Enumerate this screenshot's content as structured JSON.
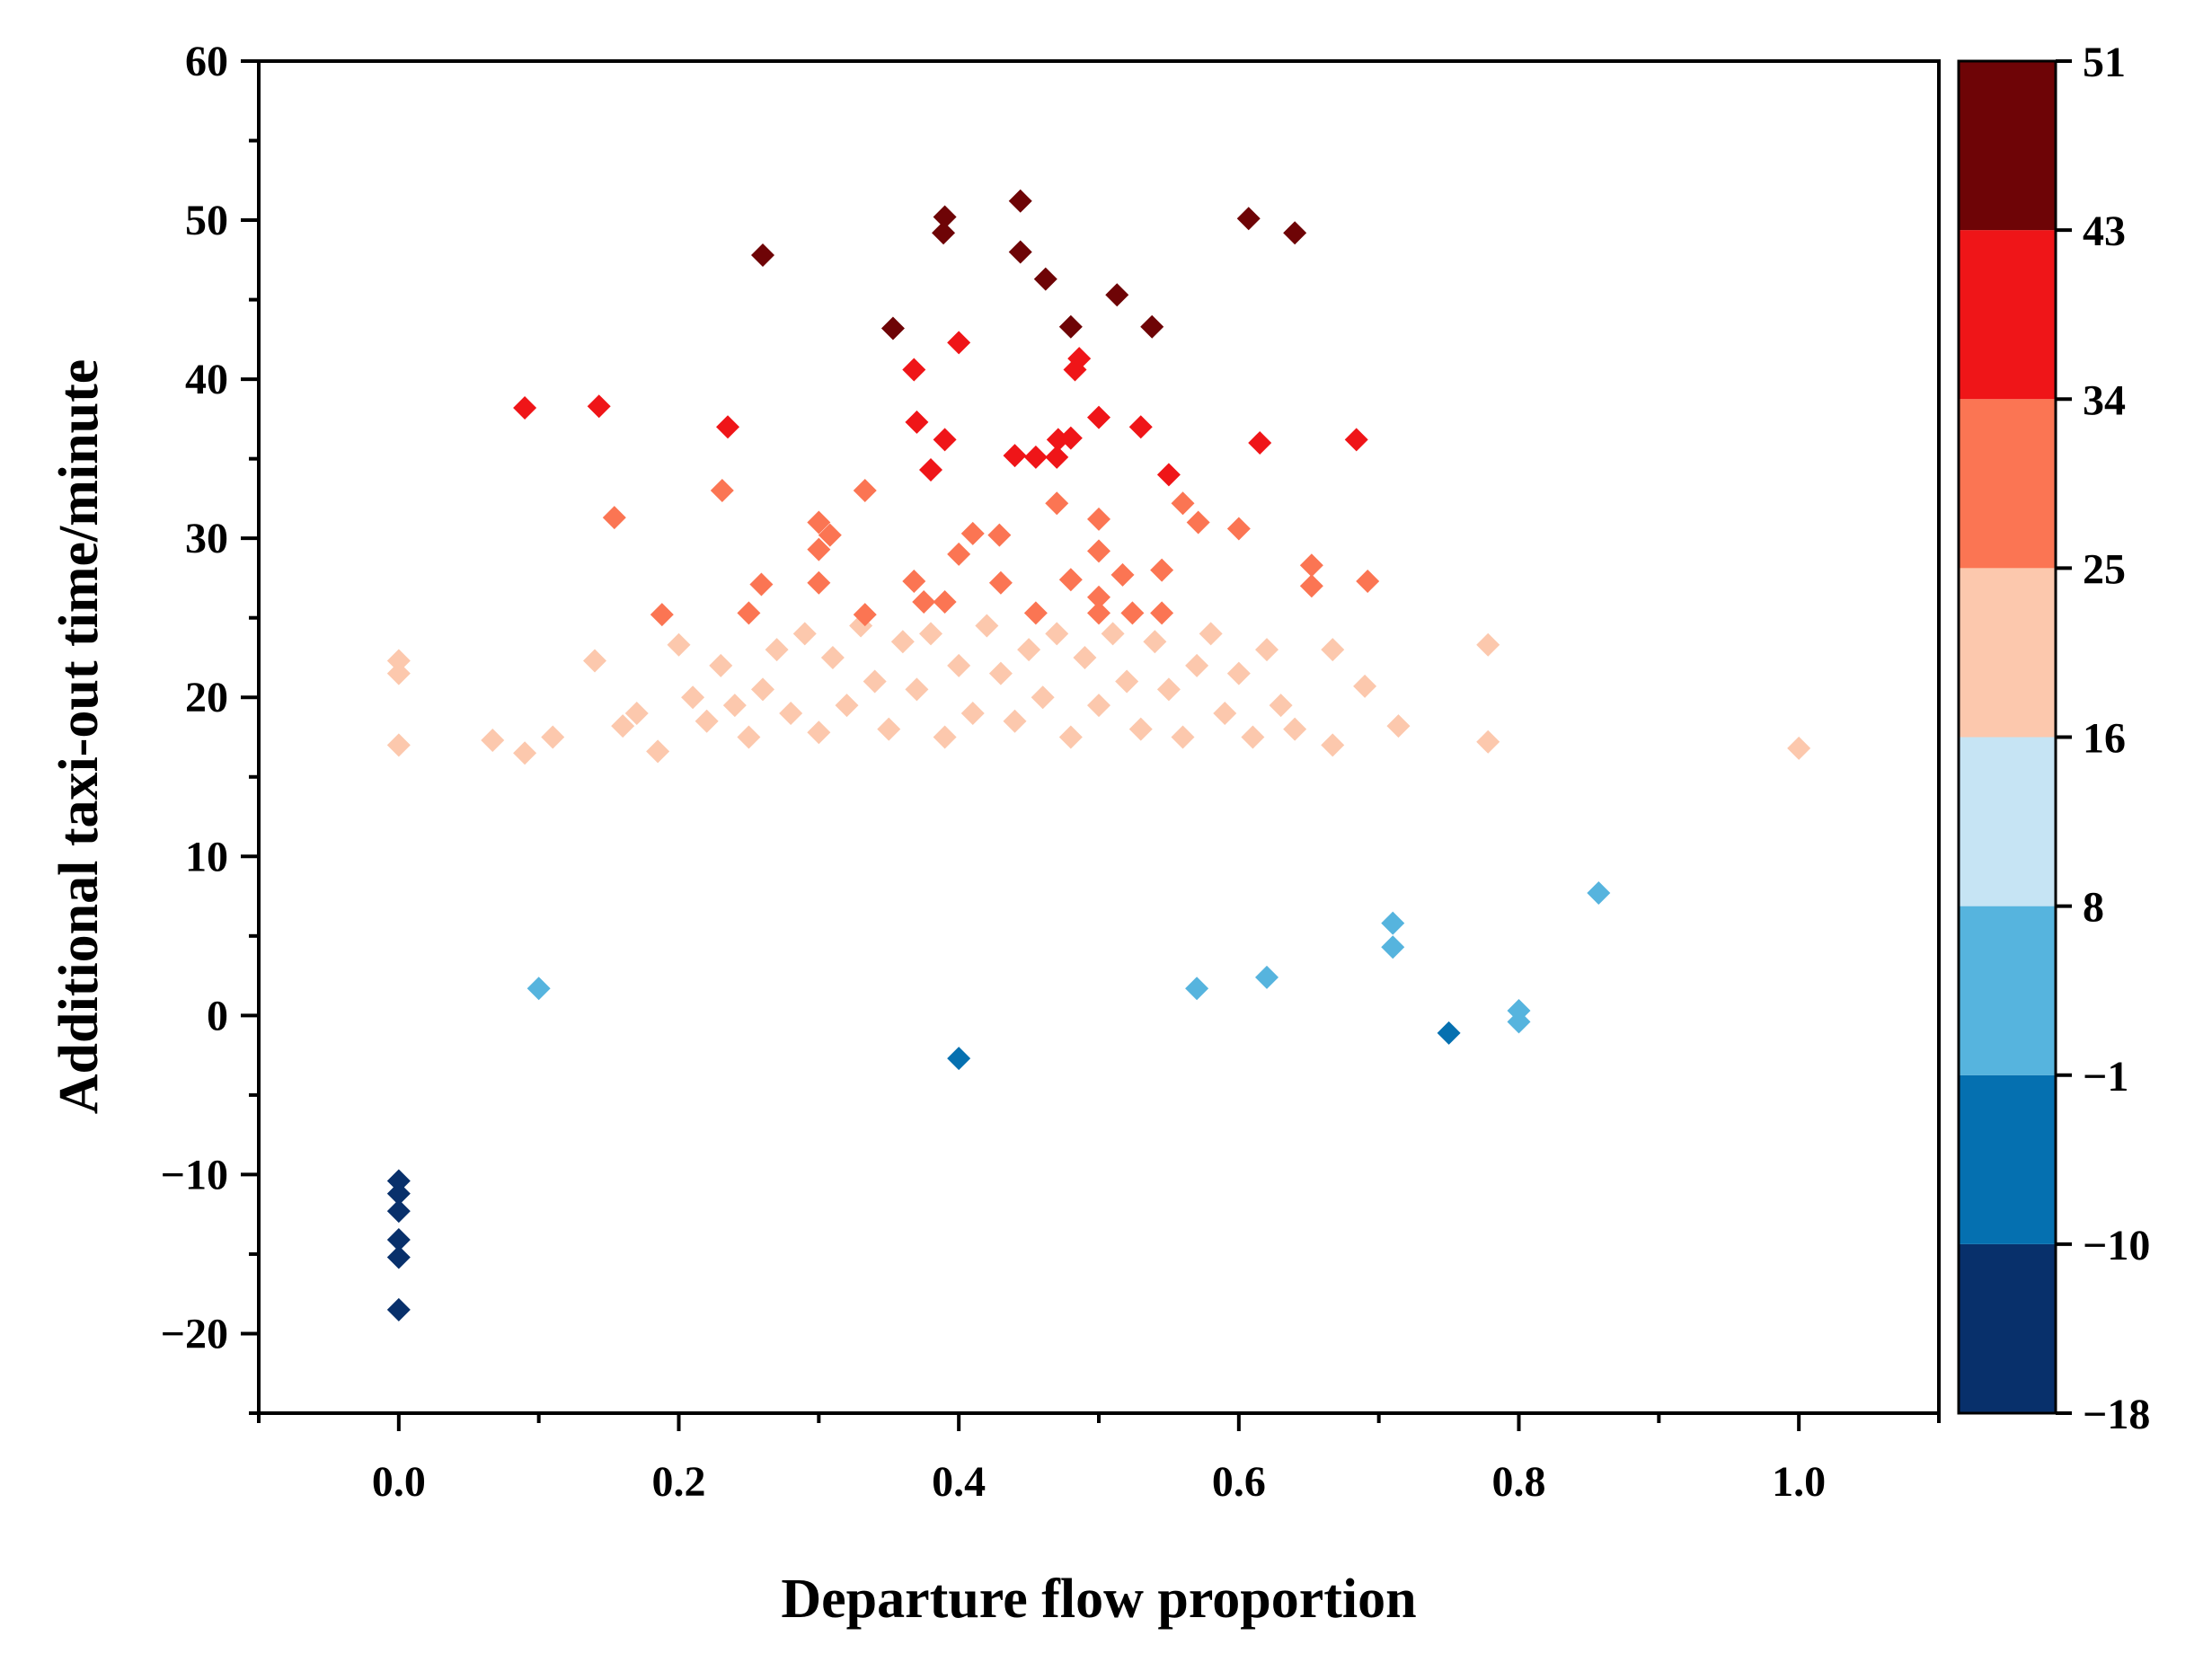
{
  "chart_data": {
    "type": "scatter",
    "marker": "diamond",
    "title": "",
    "xlabel": "Departure flow proportion",
    "ylabel": "Additional taxi-out time/minute",
    "xlim": [
      -0.1,
      1.1
    ],
    "ylim": [
      -25,
      60
    ],
    "xticks": [
      0.0,
      0.2,
      0.4,
      0.6,
      0.8,
      1.0
    ],
    "xtick_labels": [
      "0.0",
      "0.2",
      "0.4",
      "0.6",
      "0.8",
      "1.0"
    ],
    "yticks": [
      -20,
      -10,
      0,
      10,
      20,
      30,
      40,
      50,
      60
    ],
    "ytick_labels": [
      "−20",
      "−10",
      "0",
      "10",
      "20",
      "30",
      "40",
      "50",
      "60"
    ],
    "colorbar": {
      "boundaries": [
        -18,
        -10,
        -1,
        8,
        16,
        25,
        34,
        43,
        51
      ],
      "tick_labels": [
        "−18",
        "−10",
        "−1",
        "8",
        "16",
        "25",
        "34",
        "43",
        "51"
      ],
      "colors": [
        "#08306b",
        "#0570b0",
        "#56b4de",
        "#c6e4f4",
        "#fcc8ad",
        "#fb7553",
        "#ef1518",
        "#6e0406"
      ]
    },
    "series": [
      {
        "name": "Additional taxi-out time",
        "points": [
          [
            0.0,
            -18.5
          ],
          [
            0.0,
            -15.2
          ],
          [
            0.0,
            -14.1
          ],
          [
            0.0,
            -12.3
          ],
          [
            0.0,
            -11.2
          ],
          [
            0.0,
            -10.4
          ],
          [
            0.0,
            17.0
          ],
          [
            0.0,
            21.5
          ],
          [
            0.0,
            22.3
          ],
          [
            0.067,
            17.3
          ],
          [
            0.09,
            16.5
          ],
          [
            0.11,
            17.5
          ],
          [
            0.14,
            22.3
          ],
          [
            0.16,
            18.2
          ],
          [
            0.17,
            19.0
          ],
          [
            0.185,
            16.6
          ],
          [
            0.2,
            23.3
          ],
          [
            0.21,
            20.0
          ],
          [
            0.22,
            18.5
          ],
          [
            0.23,
            22.0
          ],
          [
            0.24,
            19.5
          ],
          [
            0.25,
            17.5
          ],
          [
            0.26,
            20.5
          ],
          [
            0.27,
            23.0
          ],
          [
            0.28,
            19.0
          ],
          [
            0.29,
            24.0
          ],
          [
            0.3,
            17.8
          ],
          [
            0.31,
            22.5
          ],
          [
            0.32,
            19.5
          ],
          [
            0.33,
            24.5
          ],
          [
            0.34,
            21.0
          ],
          [
            0.35,
            18.0
          ],
          [
            0.36,
            23.5
          ],
          [
            0.37,
            20.5
          ],
          [
            0.38,
            24.0
          ],
          [
            0.39,
            17.5
          ],
          [
            0.4,
            22.0
          ],
          [
            0.41,
            19.0
          ],
          [
            0.42,
            24.5
          ],
          [
            0.43,
            21.5
          ],
          [
            0.44,
            18.5
          ],
          [
            0.45,
            23.0
          ],
          [
            0.46,
            20.0
          ],
          [
            0.47,
            24.0
          ],
          [
            0.48,
            17.5
          ],
          [
            0.49,
            22.5
          ],
          [
            0.5,
            19.5
          ],
          [
            0.51,
            24.0
          ],
          [
            0.52,
            21.0
          ],
          [
            0.53,
            18.0
          ],
          [
            0.54,
            23.5
          ],
          [
            0.55,
            20.5
          ],
          [
            0.56,
            17.5
          ],
          [
            0.57,
            22.0
          ],
          [
            0.58,
            24.0
          ],
          [
            0.59,
            19.0
          ],
          [
            0.6,
            21.5
          ],
          [
            0.61,
            17.5
          ],
          [
            0.62,
            23.0
          ],
          [
            0.63,
            19.5
          ],
          [
            0.64,
            18.0
          ],
          [
            0.667,
            17.0
          ],
          [
            0.667,
            23.0
          ],
          [
            0.69,
            20.7
          ],
          [
            0.714,
            18.2
          ],
          [
            0.778,
            17.2
          ],
          [
            0.778,
            23.3
          ],
          [
            1.0,
            16.8
          ],
          [
            0.09,
            38.2
          ],
          [
            0.143,
            38.3
          ],
          [
            0.154,
            31.3
          ],
          [
            0.188,
            25.2
          ],
          [
            0.231,
            33.0
          ],
          [
            0.235,
            37.0
          ],
          [
            0.25,
            25.3
          ],
          [
            0.259,
            27.1
          ],
          [
            0.3,
            31.0
          ],
          [
            0.3,
            29.3
          ],
          [
            0.3,
            27.2
          ],
          [
            0.308,
            30.2
          ],
          [
            0.333,
            33.0
          ],
          [
            0.333,
            25.2
          ],
          [
            0.368,
            27.3
          ],
          [
            0.375,
            26.0
          ],
          [
            0.39,
            26.0
          ],
          [
            0.4,
            29.0
          ],
          [
            0.41,
            30.3
          ],
          [
            0.429,
            30.2
          ],
          [
            0.43,
            27.2
          ],
          [
            0.455,
            25.3
          ],
          [
            0.47,
            32.2
          ],
          [
            0.48,
            27.4
          ],
          [
            0.5,
            31.2
          ],
          [
            0.5,
            29.2
          ],
          [
            0.5,
            26.3
          ],
          [
            0.5,
            25.3
          ],
          [
            0.517,
            27.7
          ],
          [
            0.524,
            25.3
          ],
          [
            0.545,
            28.0
          ],
          [
            0.545,
            25.3
          ],
          [
            0.56,
            32.2
          ],
          [
            0.571,
            31.0
          ],
          [
            0.6,
            30.6
          ],
          [
            0.652,
            28.3
          ],
          [
            0.652,
            27.0
          ],
          [
            0.692,
            27.3
          ],
          [
            0.353,
            43.2
          ],
          [
            0.368,
            40.6
          ],
          [
            0.37,
            37.3
          ],
          [
            0.38,
            34.3
          ],
          [
            0.39,
            36.2
          ],
          [
            0.4,
            42.3
          ],
          [
            0.44,
            35.2
          ],
          [
            0.455,
            35.1
          ],
          [
            0.47,
            35.1
          ],
          [
            0.471,
            36.2
          ],
          [
            0.48,
            36.3
          ],
          [
            0.483,
            40.6
          ],
          [
            0.486,
            41.3
          ],
          [
            0.5,
            37.6
          ],
          [
            0.53,
            37.0
          ],
          [
            0.55,
            34.0
          ],
          [
            0.615,
            36.0
          ],
          [
            0.684,
            36.2
          ],
          [
            0.26,
            47.8
          ],
          [
            0.39,
            50.2
          ],
          [
            0.389,
            49.2
          ],
          [
            0.444,
            51.2
          ],
          [
            0.444,
            48.0
          ],
          [
            0.462,
            46.3
          ],
          [
            0.48,
            43.3
          ],
          [
            0.513,
            45.3
          ],
          [
            0.538,
            43.3
          ],
          [
            0.607,
            50.1
          ],
          [
            0.64,
            49.2
          ],
          [
            0.1,
            1.7
          ],
          [
            0.4,
            -2.7
          ],
          [
            0.57,
            1.7
          ],
          [
            0.75,
            -1.1
          ],
          [
            0.8,
            0.3
          ],
          [
            0.8,
            -0.4
          ],
          [
            0.857,
            7.7
          ],
          [
            0.71,
            4.3
          ],
          [
            0.71,
            5.8
          ],
          [
            0.62,
            2.4
          ]
        ]
      }
    ]
  }
}
